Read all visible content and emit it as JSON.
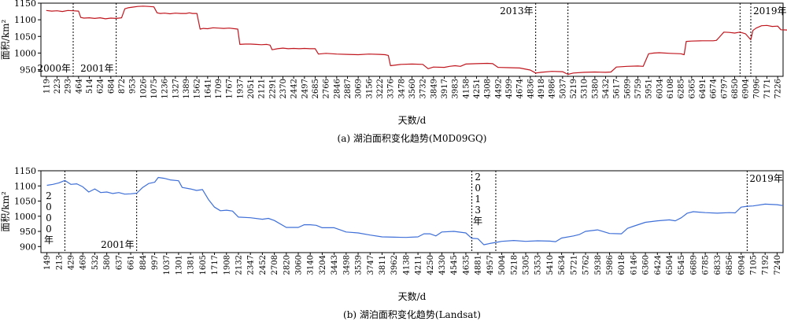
{
  "chart_data": [
    {
      "type": "line",
      "caption": "(a) 湖泊面积变化趋势(M0D09GQ)",
      "xlabel": "天数/d",
      "ylabel": "面积/km²",
      "ylim": [
        930,
        1150
      ],
      "yticks": [
        950,
        1000,
        1050,
        1100,
        1150
      ],
      "color": "#c0161e",
      "x_tick_labels": [
        "119",
        "223",
        "293",
        "464",
        "514",
        "624",
        "684",
        "872",
        "953",
        "1026",
        "1075",
        "1236",
        "1327",
        "1389",
        "1562",
        "1641",
        "1709",
        "1767",
        "1937",
        "2051",
        "2121",
        "2291",
        "2370",
        "2442",
        "2497",
        "2685",
        "2766",
        "2846",
        "2887",
        "3069",
        "3156",
        "3222",
        "3376",
        "3478",
        "3560",
        "3732",
        "3849",
        "3917",
        "3983",
        "4158",
        "4251",
        "4308",
        "4492",
        "4599",
        "4674",
        "4836",
        "4918",
        "4986",
        "5037",
        "5219",
        "5310",
        "5380",
        "5432",
        "5617",
        "5699",
        "5759",
        "5951",
        "6034",
        "6108",
        "6285",
        "6365",
        "6491",
        "6674",
        "6797",
        "6850",
        "6904",
        "7096",
        "7171",
        "7226"
      ],
      "year_dividers": [
        {
          "after_tick": 2,
          "label": "2000年",
          "label_side": "left"
        },
        {
          "after_tick": 6,
          "label": "2001年",
          "label_side": "left"
        },
        {
          "after_tick": 45,
          "label": "2013年",
          "label_side": "left"
        },
        {
          "after_tick": 48,
          "label": "",
          "label_side": "none"
        },
        {
          "after_tick": 64,
          "label": "",
          "label_side": "none"
        },
        {
          "after_tick": 65,
          "label": "2019年",
          "label_side": "right"
        }
      ],
      "series": [
        {
          "points": [
            [
              0,
              1128
            ],
            [
              0.5,
              1126
            ],
            [
              1,
              1127
            ],
            [
              1.5,
              1125
            ],
            [
              2,
              1128
            ],
            [
              2.5,
              1127
            ],
            [
              3,
              1126
            ],
            [
              3.2,
              1107
            ],
            [
              3.5,
              1105
            ],
            [
              4,
              1106
            ],
            [
              4.5,
              1104
            ],
            [
              5,
              1106
            ],
            [
              5.5,
              1103
            ],
            [
              6,
              1105
            ],
            [
              6.5,
              1104
            ],
            [
              7,
              1106
            ],
            [
              7.3,
              1133
            ],
            [
              7.6,
              1136
            ],
            [
              8,
              1138
            ],
            [
              8.5,
              1140
            ],
            [
              9,
              1141
            ],
            [
              9.5,
              1140
            ],
            [
              10,
              1139
            ],
            [
              10.3,
              1121
            ],
            [
              10.6,
              1119
            ],
            [
              11,
              1120
            ],
            [
              11.5,
              1118
            ],
            [
              12,
              1120
            ],
            [
              12.5,
              1119
            ],
            [
              13,
              1119
            ],
            [
              13.3,
              1121
            ],
            [
              13.6,
              1119
            ],
            [
              14,
              1119
            ],
            [
              14.3,
              1072
            ],
            [
              14.6,
              1074
            ],
            [
              15,
              1073
            ],
            [
              15.5,
              1076
            ],
            [
              16,
              1075
            ],
            [
              16.5,
              1074
            ],
            [
              17,
              1075
            ],
            [
              17.5,
              1073
            ],
            [
              17.8,
              1072
            ],
            [
              18,
              1026
            ],
            [
              18.5,
              1027
            ],
            [
              19,
              1027
            ],
            [
              19.5,
              1026
            ],
            [
              20,
              1025
            ],
            [
              20.5,
              1026
            ],
            [
              20.8,
              1024
            ],
            [
              21,
              1010
            ],
            [
              21.5,
              1013
            ],
            [
              22,
              1015
            ],
            [
              22.5,
              1013
            ],
            [
              23,
              1014
            ],
            [
              23.5,
              1013
            ],
            [
              24,
              1014
            ],
            [
              24.5,
              1013
            ],
            [
              25,
              1013
            ],
            [
              25.3,
              997
            ],
            [
              26,
              999
            ],
            [
              27,
              997
            ],
            [
              28,
              996
            ],
            [
              29,
              995
            ],
            [
              30,
              997
            ],
            [
              31,
              996
            ],
            [
              31.5,
              995
            ],
            [
              31.8,
              993
            ],
            [
              32,
              962
            ],
            [
              33,
              966
            ],
            [
              34,
              967
            ],
            [
              35,
              966
            ],
            [
              35.5,
              953
            ],
            [
              36,
              958
            ],
            [
              37,
              957
            ],
            [
              37.5,
              960
            ],
            [
              38,
              962
            ],
            [
              38.5,
              960
            ],
            [
              39,
              967
            ],
            [
              40,
              968
            ],
            [
              41,
              969
            ],
            [
              41.5,
              968
            ],
            [
              42,
              957
            ],
            [
              43,
              956
            ],
            [
              44,
              955
            ],
            [
              45,
              949
            ],
            [
              45.5,
              940
            ],
            [
              46,
              942
            ],
            [
              47,
              945
            ],
            [
              48,
              944
            ],
            [
              48.5,
              936
            ],
            [
              49,
              940
            ],
            [
              50,
              942
            ],
            [
              51,
              943
            ],
            [
              52,
              942
            ],
            [
              52.5,
              943
            ],
            [
              53,
              958
            ],
            [
              54,
              960
            ],
            [
              55,
              961
            ],
            [
              55.5,
              960
            ],
            [
              56,
              998
            ],
            [
              56.5,
              1000
            ],
            [
              57,
              1001
            ],
            [
              58,
              999
            ],
            [
              59,
              998
            ],
            [
              59.3,
              995
            ],
            [
              59.5,
              1035
            ],
            [
              60,
              1036
            ],
            [
              61,
              1037
            ],
            [
              62,
              1037
            ],
            [
              62.3,
              1038
            ],
            [
              62.5,
              1045
            ],
            [
              63,
              1063
            ],
            [
              63.5,
              1062
            ],
            [
              64,
              1060
            ],
            [
              64.5,
              1063
            ],
            [
              65,
              1058
            ],
            [
              65.5,
              1040
            ],
            [
              65.7,
              1068
            ],
            [
              66,
              1075
            ],
            [
              66.5,
              1082
            ],
            [
              67,
              1083
            ],
            [
              67.5,
              1080
            ],
            [
              68,
              1081
            ],
            [
              68.3,
              1070
            ],
            [
              69,
              1069
            ],
            [
              69.5,
              1068
            ],
            [
              69.8,
              1055
            ]
          ]
        }
      ]
    },
    {
      "type": "line",
      "caption": "(b) 湖泊面积变化趋势(Landsat)",
      "xlabel": "天数/d",
      "ylabel": "面积/km²",
      "ylim": [
        880,
        1150
      ],
      "yticks": [
        900,
        950,
        1000,
        1050,
        1100,
        1150
      ],
      "color": "#3e6fd8",
      "x_tick_labels": [
        "149",
        "213",
        "429",
        "469",
        "532",
        "580",
        "637",
        "661",
        "884",
        "997",
        "1037",
        "1301",
        "1381",
        "1605",
        "1717",
        "1908",
        "2132",
        "2347",
        "2452",
        "2708",
        "2820",
        "3060",
        "3140",
        "3204",
        "3443",
        "3498",
        "3539",
        "3747",
        "3811",
        "3962",
        "4138",
        "4211",
        "4250",
        "4330",
        "4545",
        "4635",
        "4881",
        "4957",
        "5004",
        "5218",
        "5305",
        "5353",
        "5410",
        "5634",
        "5721",
        "5762",
        "5938",
        "5986",
        "6018",
        "6146",
        "6360",
        "6424",
        "6504",
        "6545",
        "6689",
        "6785",
        "6833",
        "6856",
        "6904",
        "7105",
        "7192",
        "7240"
      ],
      "year_dividers": [
        {
          "after_tick": 1,
          "label": "",
          "label_side": "none"
        },
        {
          "after_tick": 7,
          "label": "2001年",
          "label_side": "left"
        },
        {
          "after_tick": 35,
          "label": "",
          "label_side": "none"
        },
        {
          "after_tick": 37,
          "label": "",
          "label_side": "none"
        },
        {
          "after_tick": 58,
          "label": "2019年",
          "label_side": "right"
        }
      ],
      "vertical_labels": [
        {
          "between_ticks": [
            0,
            1
          ],
          "chars": [
            "2",
            "0",
            "0",
            "0",
            "年"
          ]
        },
        {
          "between_ticks": [
            35,
            37
          ],
          "chars": [
            "2",
            "0",
            "1",
            "3",
            "年"
          ]
        }
      ],
      "series": [
        {
          "points": [
            [
              0,
              1102
            ],
            [
              0.5,
              1105
            ],
            [
              1,
              1110
            ],
            [
              1.5,
              1118
            ],
            [
              2,
              1105
            ],
            [
              2.5,
              1107
            ],
            [
              3,
              1097
            ],
            [
              3.5,
              1080
            ],
            [
              4,
              1090
            ],
            [
              4.5,
              1078
            ],
            [
              5,
              1080
            ],
            [
              5.5,
              1075
            ],
            [
              6,
              1078
            ],
            [
              6.5,
              1073
            ],
            [
              7,
              1074
            ],
            [
              7.5,
              1076
            ],
            [
              8,
              1095
            ],
            [
              8.5,
              1108
            ],
            [
              9,
              1112
            ],
            [
              9.3,
              1128
            ],
            [
              9.8,
              1125
            ],
            [
              10.3,
              1120
            ],
            [
              11,
              1117
            ],
            [
              11.3,
              1095
            ],
            [
              12,
              1090
            ],
            [
              12.5,
              1085
            ],
            [
              13,
              1088
            ],
            [
              13.5,
              1055
            ],
            [
              14,
              1030
            ],
            [
              14.5,
              1018
            ],
            [
              15,
              1020
            ],
            [
              15.5,
              1017
            ],
            [
              16,
              997
            ],
            [
              17,
              995
            ],
            [
              18,
              990
            ],
            [
              18.5,
              993
            ],
            [
              19,
              986
            ],
            [
              20,
              963
            ],
            [
              21,
              963
            ],
            [
              21.5,
              972
            ],
            [
              22,
              972
            ],
            [
              22.5,
              970
            ],
            [
              23,
              962
            ],
            [
              24,
              962
            ],
            [
              24.5,
              955
            ],
            [
              25,
              948
            ],
            [
              26,
              945
            ],
            [
              27,
              938
            ],
            [
              28,
              932
            ],
            [
              29,
              931
            ],
            [
              30,
              930
            ],
            [
              31,
              932
            ],
            [
              31.5,
              942
            ],
            [
              32,
              942
            ],
            [
              32.5,
              935
            ],
            [
              33,
              948
            ],
            [
              34,
              950
            ],
            [
              35,
              945
            ],
            [
              35.5,
              927
            ],
            [
              36,
              926
            ],
            [
              36.5,
              906
            ],
            [
              37,
              910
            ],
            [
              38,
              917
            ],
            [
              39,
              920
            ],
            [
              40,
              917
            ],
            [
              41,
              919
            ],
            [
              42,
              918
            ],
            [
              42.5,
              916
            ],
            [
              43,
              928
            ],
            [
              44,
              935
            ],
            [
              44.5,
              940
            ],
            [
              45,
              950
            ],
            [
              46,
              955
            ],
            [
              47,
              943
            ],
            [
              48,
              942
            ],
            [
              48.5,
              960
            ],
            [
              49,
              967
            ],
            [
              50,
              980
            ],
            [
              51,
              985
            ],
            [
              52,
              988
            ],
            [
              52.5,
              985
            ],
            [
              53,
              995
            ],
            [
              53.5,
              1010
            ],
            [
              54,
              1015
            ],
            [
              55,
              1012
            ],
            [
              56,
              1010
            ],
            [
              57,
              1012
            ],
            [
              57.5,
              1011
            ],
            [
              58,
              1030
            ],
            [
              58.5,
              1033
            ],
            [
              59,
              1034
            ],
            [
              60,
              1040
            ],
            [
              61,
              1038
            ],
            [
              61.5,
              1035
            ]
          ]
        }
      ]
    }
  ]
}
